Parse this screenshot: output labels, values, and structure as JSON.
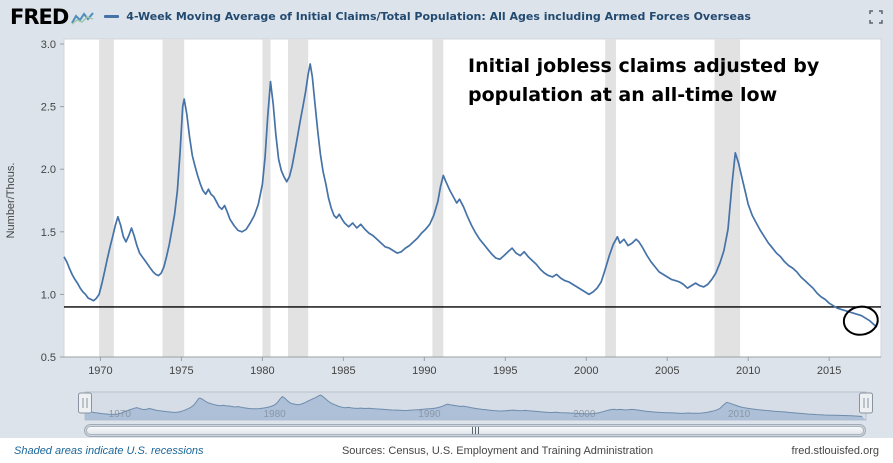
{
  "header": {
    "logo": "FRED",
    "title": "4-Week Moving Average of Initial Claims/Total Population: All Ages including Armed Forces Overseas"
  },
  "footer": {
    "recession_note": "Shaded areas indicate U.S. recessions",
    "sources": "Sources: Census, U.S. Employment and Training Administration",
    "site": "fred.stlouisfed.org"
  },
  "chart_data": {
    "type": "line",
    "title": "4-Week Moving Average of Initial Claims/Total Population: All Ages including Armed Forces Overseas",
    "ylabel": "Number/Thous.",
    "y_ticks": [
      "3.0",
      "2.5",
      "2.0",
      "1.5",
      "1.0",
      "0.5"
    ],
    "x_ticks": [
      "1970",
      "1975",
      "1980",
      "1985",
      "1990",
      "1995",
      "2000",
      "2005",
      "2010",
      "2015"
    ],
    "x_range": [
      1967.75,
      2018.2
    ],
    "y_range": [
      0.5,
      3.0
    ],
    "line_color": "#4572a7",
    "recession_color": "#e2e2e2",
    "reference_line_value": 0.9,
    "annotation": [
      "Initial jobless claims adjusted by",
      "population at an all-time low"
    ],
    "circle": {
      "year": 2016.95,
      "value": 0.79
    },
    "recessions": [
      [
        1969.92,
        1970.83
      ],
      [
        1973.83,
        1975.17
      ],
      [
        1980.0,
        1980.5
      ],
      [
        1981.58,
        1982.83
      ],
      [
        1990.5,
        1991.17
      ],
      [
        2001.17,
        2001.83
      ],
      [
        2007.92,
        2009.5
      ]
    ],
    "navigator_labels": [
      "1970",
      "1980",
      "1990",
      "2000",
      "2010"
    ],
    "series": [
      [
        1967.75,
        1.3
      ],
      [
        1967.92,
        1.26
      ],
      [
        1968.08,
        1.21
      ],
      [
        1968.25,
        1.16
      ],
      [
        1968.42,
        1.12
      ],
      [
        1968.58,
        1.09
      ],
      [
        1968.75,
        1.05
      ],
      [
        1968.92,
        1.02
      ],
      [
        1969.08,
        1.0
      ],
      [
        1969.25,
        0.97
      ],
      [
        1969.42,
        0.96
      ],
      [
        1969.58,
        0.95
      ],
      [
        1969.75,
        0.97
      ],
      [
        1969.92,
        1.0
      ],
      [
        1970.08,
        1.08
      ],
      [
        1970.25,
        1.18
      ],
      [
        1970.42,
        1.28
      ],
      [
        1970.58,
        1.37
      ],
      [
        1970.75,
        1.46
      ],
      [
        1970.92,
        1.55
      ],
      [
        1971.08,
        1.62
      ],
      [
        1971.25,
        1.55
      ],
      [
        1971.42,
        1.46
      ],
      [
        1971.58,
        1.42
      ],
      [
        1971.75,
        1.47
      ],
      [
        1971.92,
        1.53
      ],
      [
        1972.08,
        1.47
      ],
      [
        1972.25,
        1.39
      ],
      [
        1972.42,
        1.33
      ],
      [
        1972.58,
        1.3
      ],
      [
        1972.75,
        1.27
      ],
      [
        1972.92,
        1.24
      ],
      [
        1973.08,
        1.21
      ],
      [
        1973.25,
        1.18
      ],
      [
        1973.42,
        1.16
      ],
      [
        1973.58,
        1.15
      ],
      [
        1973.75,
        1.17
      ],
      [
        1973.92,
        1.22
      ],
      [
        1974.08,
        1.3
      ],
      [
        1974.25,
        1.4
      ],
      [
        1974.42,
        1.52
      ],
      [
        1974.58,
        1.64
      ],
      [
        1974.75,
        1.83
      ],
      [
        1974.92,
        2.14
      ],
      [
        1975.08,
        2.5
      ],
      [
        1975.17,
        2.56
      ],
      [
        1975.33,
        2.44
      ],
      [
        1975.5,
        2.26
      ],
      [
        1975.67,
        2.11
      ],
      [
        1975.83,
        2.03
      ],
      [
        1976.0,
        1.95
      ],
      [
        1976.17,
        1.88
      ],
      [
        1976.33,
        1.83
      ],
      [
        1976.5,
        1.8
      ],
      [
        1976.67,
        1.84
      ],
      [
        1976.83,
        1.8
      ],
      [
        1977.0,
        1.78
      ],
      [
        1977.17,
        1.74
      ],
      [
        1977.33,
        1.7
      ],
      [
        1977.5,
        1.68
      ],
      [
        1977.67,
        1.71
      ],
      [
        1977.83,
        1.66
      ],
      [
        1978.0,
        1.6
      ],
      [
        1978.25,
        1.55
      ],
      [
        1978.5,
        1.51
      ],
      [
        1978.75,
        1.5
      ],
      [
        1979.0,
        1.52
      ],
      [
        1979.25,
        1.57
      ],
      [
        1979.5,
        1.63
      ],
      [
        1979.75,
        1.72
      ],
      [
        1980.0,
        1.88
      ],
      [
        1980.17,
        2.1
      ],
      [
        1980.33,
        2.42
      ],
      [
        1980.5,
        2.7
      ],
      [
        1980.67,
        2.52
      ],
      [
        1980.83,
        2.28
      ],
      [
        1981.0,
        2.08
      ],
      [
        1981.17,
        1.99
      ],
      [
        1981.33,
        1.94
      ],
      [
        1981.5,
        1.9
      ],
      [
        1981.67,
        1.94
      ],
      [
        1981.83,
        2.02
      ],
      [
        1982.0,
        2.14
      ],
      [
        1982.17,
        2.26
      ],
      [
        1982.33,
        2.38
      ],
      [
        1982.5,
        2.5
      ],
      [
        1982.67,
        2.62
      ],
      [
        1982.83,
        2.76
      ],
      [
        1982.95,
        2.84
      ],
      [
        1983.08,
        2.74
      ],
      [
        1983.25,
        2.52
      ],
      [
        1983.42,
        2.3
      ],
      [
        1983.58,
        2.12
      ],
      [
        1983.75,
        1.98
      ],
      [
        1983.92,
        1.88
      ],
      [
        1984.08,
        1.77
      ],
      [
        1984.25,
        1.69
      ],
      [
        1984.42,
        1.63
      ],
      [
        1984.58,
        1.61
      ],
      [
        1984.75,
        1.64
      ],
      [
        1984.92,
        1.6
      ],
      [
        1985.08,
        1.57
      ],
      [
        1985.33,
        1.54
      ],
      [
        1985.58,
        1.57
      ],
      [
        1985.83,
        1.53
      ],
      [
        1986.08,
        1.56
      ],
      [
        1986.33,
        1.52
      ],
      [
        1986.58,
        1.49
      ],
      [
        1986.83,
        1.47
      ],
      [
        1987.08,
        1.44
      ],
      [
        1987.33,
        1.41
      ],
      [
        1987.58,
        1.38
      ],
      [
        1987.83,
        1.37
      ],
      [
        1988.08,
        1.35
      ],
      [
        1988.33,
        1.33
      ],
      [
        1988.58,
        1.34
      ],
      [
        1988.83,
        1.37
      ],
      [
        1989.08,
        1.39
      ],
      [
        1989.33,
        1.42
      ],
      [
        1989.58,
        1.45
      ],
      [
        1989.83,
        1.49
      ],
      [
        1990.08,
        1.52
      ],
      [
        1990.33,
        1.56
      ],
      [
        1990.58,
        1.63
      ],
      [
        1990.83,
        1.74
      ],
      [
        1991.0,
        1.86
      ],
      [
        1991.17,
        1.95
      ],
      [
        1991.33,
        1.9
      ],
      [
        1991.58,
        1.83
      ],
      [
        1991.83,
        1.77
      ],
      [
        1992.0,
        1.73
      ],
      [
        1992.17,
        1.76
      ],
      [
        1992.42,
        1.7
      ],
      [
        1992.67,
        1.62
      ],
      [
        1992.92,
        1.55
      ],
      [
        1993.17,
        1.49
      ],
      [
        1993.42,
        1.44
      ],
      [
        1993.67,
        1.4
      ],
      [
        1993.92,
        1.36
      ],
      [
        1994.17,
        1.32
      ],
      [
        1994.42,
        1.29
      ],
      [
        1994.67,
        1.28
      ],
      [
        1994.92,
        1.31
      ],
      [
        1995.17,
        1.34
      ],
      [
        1995.42,
        1.37
      ],
      [
        1995.67,
        1.33
      ],
      [
        1995.92,
        1.31
      ],
      [
        1996.17,
        1.34
      ],
      [
        1996.42,
        1.3
      ],
      [
        1996.67,
        1.27
      ],
      [
        1996.92,
        1.24
      ],
      [
        1997.17,
        1.2
      ],
      [
        1997.42,
        1.17
      ],
      [
        1997.67,
        1.15
      ],
      [
        1997.92,
        1.14
      ],
      [
        1998.17,
        1.16
      ],
      [
        1998.42,
        1.13
      ],
      [
        1998.67,
        1.11
      ],
      [
        1998.92,
        1.1
      ],
      [
        1999.17,
        1.08
      ],
      [
        1999.42,
        1.06
      ],
      [
        1999.67,
        1.04
      ],
      [
        1999.92,
        1.02
      ],
      [
        2000.17,
        1.0
      ],
      [
        2000.42,
        1.02
      ],
      [
        2000.67,
        1.05
      ],
      [
        2000.92,
        1.1
      ],
      [
        2001.17,
        1.2
      ],
      [
        2001.42,
        1.31
      ],
      [
        2001.67,
        1.4
      ],
      [
        2001.92,
        1.46
      ],
      [
        2002.08,
        1.41
      ],
      [
        2002.33,
        1.44
      ],
      [
        2002.58,
        1.39
      ],
      [
        2002.83,
        1.41
      ],
      [
        2003.08,
        1.44
      ],
      [
        2003.25,
        1.42
      ],
      [
        2003.5,
        1.37
      ],
      [
        2003.75,
        1.31
      ],
      [
        2004.0,
        1.26
      ],
      [
        2004.25,
        1.22
      ],
      [
        2004.5,
        1.18
      ],
      [
        2004.75,
        1.16
      ],
      [
        2005.0,
        1.14
      ],
      [
        2005.25,
        1.12
      ],
      [
        2005.5,
        1.11
      ],
      [
        2005.75,
        1.1
      ],
      [
        2006.0,
        1.08
      ],
      [
        2006.25,
        1.05
      ],
      [
        2006.5,
        1.07
      ],
      [
        2006.75,
        1.09
      ],
      [
        2007.0,
        1.07
      ],
      [
        2007.25,
        1.06
      ],
      [
        2007.5,
        1.08
      ],
      [
        2007.75,
        1.12
      ],
      [
        2008.0,
        1.17
      ],
      [
        2008.25,
        1.25
      ],
      [
        2008.5,
        1.35
      ],
      [
        2008.75,
        1.52
      ],
      [
        2009.0,
        1.88
      ],
      [
        2009.2,
        2.13
      ],
      [
        2009.4,
        2.05
      ],
      [
        2009.6,
        1.94
      ],
      [
        2009.8,
        1.83
      ],
      [
        2010.0,
        1.72
      ],
      [
        2010.25,
        1.63
      ],
      [
        2010.5,
        1.57
      ],
      [
        2010.75,
        1.51
      ],
      [
        2011.0,
        1.46
      ],
      [
        2011.25,
        1.41
      ],
      [
        2011.5,
        1.37
      ],
      [
        2011.75,
        1.33
      ],
      [
        2012.0,
        1.3
      ],
      [
        2012.25,
        1.26
      ],
      [
        2012.5,
        1.23
      ],
      [
        2012.75,
        1.21
      ],
      [
        2013.0,
        1.18
      ],
      [
        2013.25,
        1.14
      ],
      [
        2013.5,
        1.11
      ],
      [
        2013.75,
        1.08
      ],
      [
        2014.0,
        1.05
      ],
      [
        2014.25,
        1.01
      ],
      [
        2014.5,
        0.98
      ],
      [
        2014.75,
        0.96
      ],
      [
        2015.0,
        0.93
      ],
      [
        2015.25,
        0.91
      ],
      [
        2015.5,
        0.89
      ],
      [
        2015.75,
        0.88
      ],
      [
        2016.0,
        0.87
      ],
      [
        2016.25,
        0.86
      ],
      [
        2016.5,
        0.85
      ],
      [
        2016.75,
        0.84
      ],
      [
        2017.0,
        0.83
      ],
      [
        2017.25,
        0.81
      ],
      [
        2017.5,
        0.79
      ],
      [
        2017.75,
        0.76
      ],
      [
        2017.95,
        0.74
      ]
    ]
  }
}
